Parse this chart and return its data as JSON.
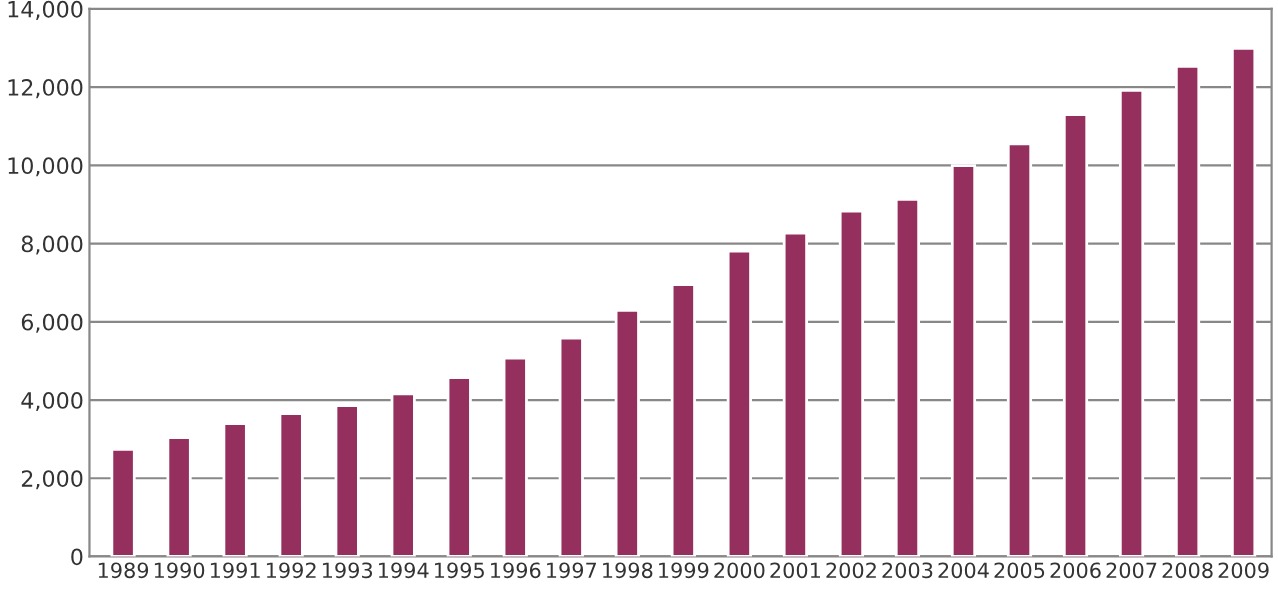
{
  "chart_data": {
    "type": "bar",
    "categories": [
      "1989",
      "1990",
      "1991",
      "1992",
      "1993",
      "1994",
      "1995",
      "1996",
      "1997",
      "1998",
      "1999",
      "2000",
      "2001",
      "2002",
      "2003",
      "2004",
      "2005",
      "2006",
      "2007",
      "2008",
      "2009"
    ],
    "values": [
      2740,
      3040,
      3400,
      3650,
      3860,
      4160,
      4570,
      5070,
      5580,
      6290,
      6950,
      7810,
      8270,
      8830,
      9130,
      9990,
      10550,
      11300,
      11920,
      12530,
      12990
    ],
    "color": "#952f5e",
    "ylim": [
      0,
      14000
    ],
    "yticks": [
      {
        "value": 0,
        "label": "0"
      },
      {
        "value": 2000,
        "label": "2,000"
      },
      {
        "value": 4000,
        "label": "4,000"
      },
      {
        "value": 6000,
        "label": "6,000"
      },
      {
        "value": 8000,
        "label": "8,000"
      },
      {
        "value": 10000,
        "label": "10,000"
      },
      {
        "value": 12000,
        "label": "12,000"
      },
      {
        "value": 14000,
        "label": "14,000"
      }
    ],
    "grid": "y"
  }
}
